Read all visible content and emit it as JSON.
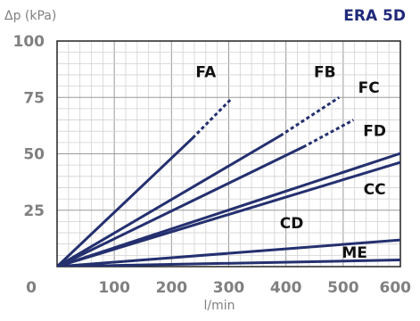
{
  "chart_data": {
    "type": "line",
    "title": "ERA 5D",
    "ylabel": "Δp (kPa)",
    "xlabel": "l/min",
    "xlim": [
      0,
      600
    ],
    "ylim": [
      0,
      100
    ],
    "xticks": [
      "0",
      "100",
      "200",
      "300",
      "400",
      "500",
      "600"
    ],
    "yticks": [
      "25",
      "50",
      "75",
      "100"
    ],
    "grid": true,
    "line_color": "#24306f",
    "series": [
      {
        "name": "FA",
        "solid": [
          [
            0,
            0
          ],
          [
            237,
            57
          ]
        ],
        "dashed": [
          [
            237,
            57
          ],
          [
            303,
            74
          ]
        ]
      },
      {
        "name": "FB",
        "solid": [
          [
            0,
            0
          ],
          [
            390,
            58
          ]
        ],
        "dashed": [
          [
            390,
            58
          ],
          [
            493,
            75
          ]
        ]
      },
      {
        "name": "FC",
        "solid": [
          [
            0,
            0
          ],
          [
            430,
            53
          ]
        ],
        "dashed": [
          [
            430,
            53
          ],
          [
            518,
            65
          ]
        ]
      },
      {
        "name": "FD",
        "solid": [
          [
            0,
            0
          ],
          [
            610,
            51
          ]
        ],
        "dashed": []
      },
      {
        "name": "CC",
        "solid": [
          [
            0,
            0
          ],
          [
            610,
            47
          ]
        ],
        "dashed": []
      },
      {
        "name": "CD",
        "solid": [
          [
            0,
            0
          ],
          [
            610,
            12
          ]
        ],
        "dashed": []
      },
      {
        "name": "ME",
        "solid": [
          [
            0,
            0
          ],
          [
            610,
            3
          ]
        ],
        "dashed": []
      }
    ],
    "labels": [
      {
        "text": "FA",
        "x": 260,
        "y": 84
      },
      {
        "text": "FB",
        "x": 468,
        "y": 84
      },
      {
        "text": "FC",
        "x": 545,
        "y": 77
      },
      {
        "text": "FD",
        "x": 555,
        "y": 58
      },
      {
        "text": "CC",
        "x": 555,
        "y": 32
      },
      {
        "text": "CD",
        "x": 410,
        "y": 17
      },
      {
        "text": "ME",
        "x": 520,
        "y": 4
      }
    ]
  }
}
